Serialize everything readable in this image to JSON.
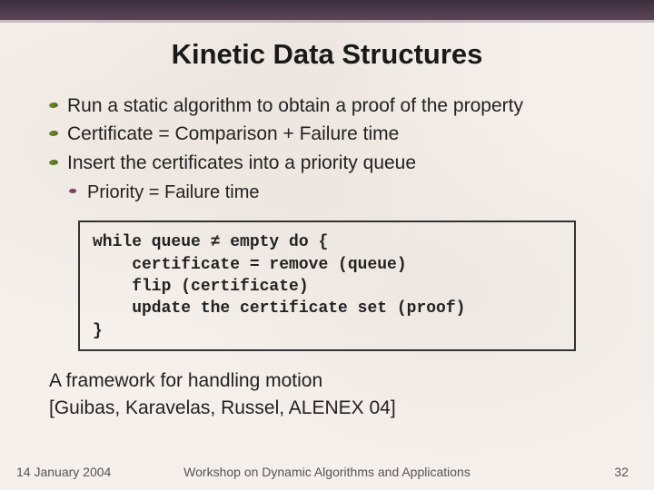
{
  "title": "Kinetic Data Structures",
  "bullets": [
    "Run a static algorithm to obtain a proof of the property",
    "Certificate = Comparison + Failure time",
    "Insert the certificates into a priority queue"
  ],
  "sub_bullet": "Priority = Failure time",
  "code": "while queue ≠ empty do {\n    certificate = remove (queue)\n    flip (certificate)\n    update the certificate set (proof)\n}",
  "closing_line1": "A framework for handling motion",
  "closing_line2": "[Guibas, Karavelas, Russel, ALENEX 04]",
  "footer": {
    "date": "14 January 2004",
    "venue": "Workshop on Dynamic Algorithms and Applications",
    "page": "32"
  },
  "colors": {
    "background": "#f5f0ec",
    "topbar_gradient": [
      "#3a2d3a",
      "#5a4558"
    ],
    "title_color": "#1a1a1a",
    "body_text": "#222222",
    "footer_text": "#555555",
    "main_bullet": "#6b8e23",
    "sub_bullet": "#8b4a6b",
    "codebox_border": "#333333"
  },
  "typography": {
    "title_fontsize": 31,
    "body_fontsize": 21,
    "sub_fontsize": 20,
    "code_fontsize": 18,
    "footer_fontsize": 14,
    "title_font": "Verdana",
    "body_font": "Arial",
    "code_font": "Courier New"
  }
}
